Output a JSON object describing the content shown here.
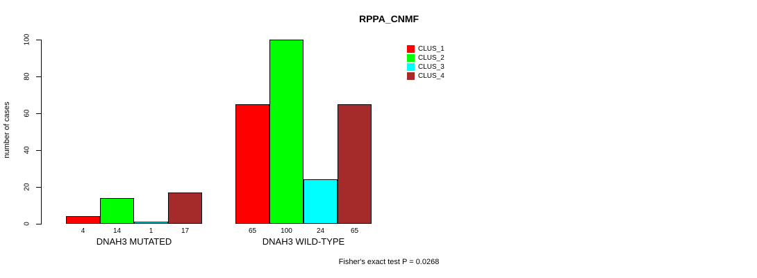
{
  "chart_data": {
    "type": "bar",
    "title": "RPPA_CNMF",
    "ylabel": "number of cases",
    "xlabel": "",
    "ylim": [
      0,
      100
    ],
    "yticks": [
      0,
      20,
      40,
      60,
      80,
      100
    ],
    "categories": [
      "DNAH3 MUTATED",
      "DNAH3 WILD-TYPE"
    ],
    "series": [
      {
        "name": "CLUS_1",
        "color": "#ff0000",
        "values": [
          4,
          65
        ]
      },
      {
        "name": "CLUS_2",
        "color": "#00ff00",
        "values": [
          14,
          100
        ]
      },
      {
        "name": "CLUS_3",
        "color": "#00ffff",
        "values": [
          1,
          24
        ]
      },
      {
        "name": "CLUS_4",
        "color": "#a52a2a",
        "values": [
          17,
          65
        ]
      }
    ],
    "bar_value_labels_shown": true,
    "grid": false,
    "legend_position": "top-right",
    "annotation": "Fisher's exact test P = 0.0268"
  }
}
